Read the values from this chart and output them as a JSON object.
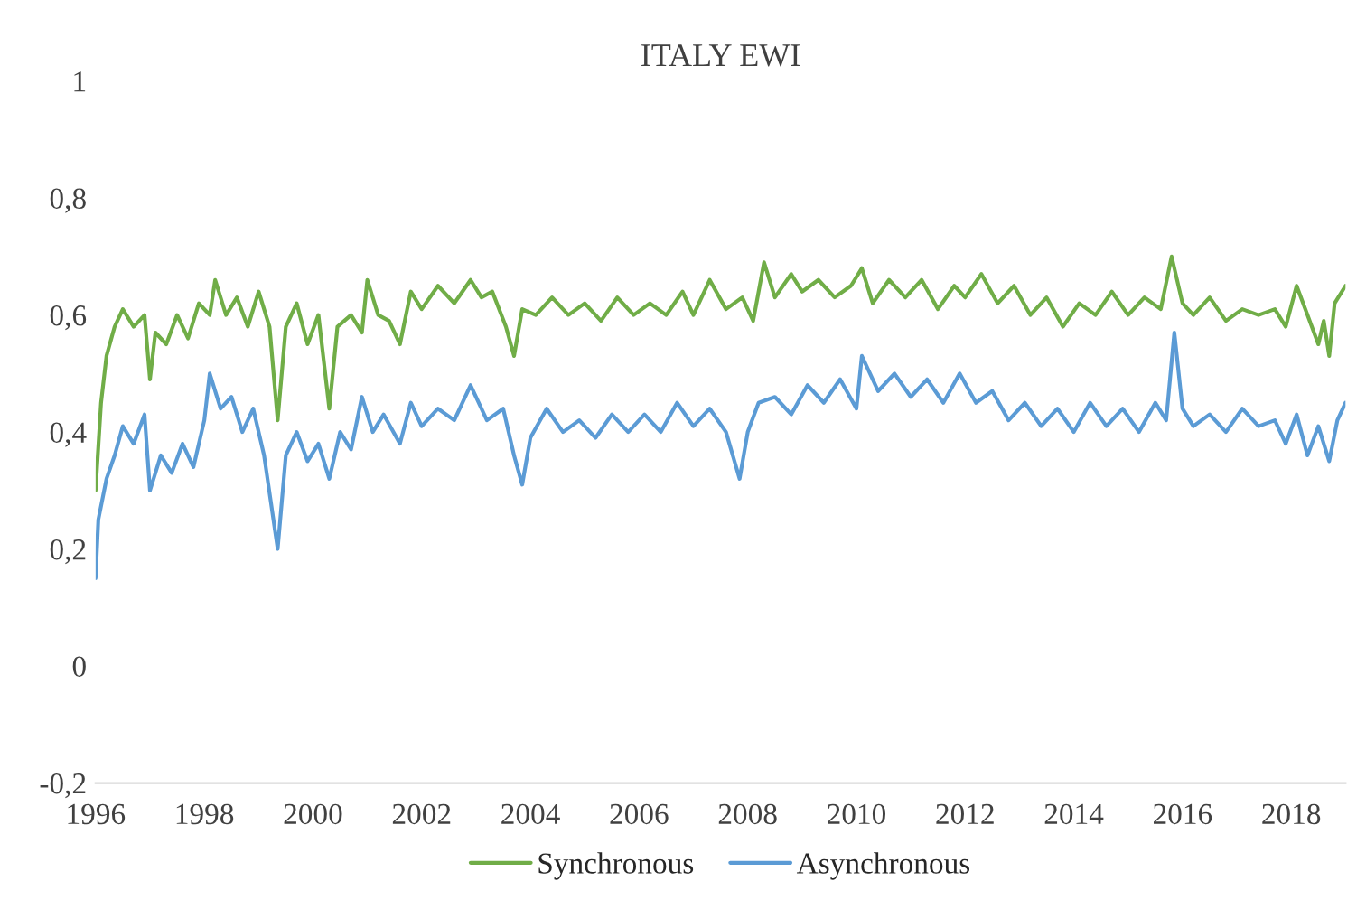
{
  "chart_data": {
    "type": "line",
    "title": "ITALY EWI",
    "xlim": [
      1996,
      2019
    ],
    "xticks": [
      1996,
      1998,
      2000,
      2002,
      2004,
      2006,
      2008,
      2010,
      2012,
      2014,
      2016,
      2018
    ],
    "ylim": [
      -0.2,
      1
    ],
    "yticks": [
      {
        "value": -0.2,
        "label": "-0,2"
      },
      0,
      {
        "value": 0.2,
        "label": "0,2"
      },
      {
        "value": 0.4,
        "label": "0,4"
      },
      {
        "value": 0.6,
        "label": "0,6"
      },
      {
        "value": 0.8,
        "label": "0,8"
      },
      1
    ],
    "grid": false,
    "legend": "bottom",
    "marker": "none",
    "line_style": "solid",
    "series": [
      {
        "name": "Synchronous",
        "color": "#70ad47",
        "x": [
          1996.0,
          1996.1,
          1996.2,
          1996.35,
          1996.5,
          1996.7,
          1996.9,
          1997.0,
          1997.1,
          1997.3,
          1997.5,
          1997.7,
          1997.9,
          1998.1,
          1998.2,
          1998.4,
          1998.6,
          1998.8,
          1999.0,
          1999.2,
          1999.35,
          1999.5,
          1999.7,
          1999.9,
          2000.1,
          2000.3,
          2000.45,
          2000.7,
          2000.9,
          2001.0,
          2001.2,
          2001.4,
          2001.6,
          2001.8,
          2002.0,
          2002.3,
          2002.6,
          2002.9,
          2003.1,
          2003.3,
          2003.55,
          2003.7,
          2003.85,
          2004.1,
          2004.4,
          2004.7,
          2005.0,
          2005.3,
          2005.6,
          2005.9,
          2006.2,
          2006.5,
          2006.8,
          2007.0,
          2007.3,
          2007.6,
          2007.9,
          2008.1,
          2008.3,
          2008.5,
          2008.8,
          2009.0,
          2009.3,
          2009.6,
          2009.9,
          2010.1,
          2010.3,
          2010.6,
          2010.9,
          2011.2,
          2011.5,
          2011.8,
          2012.0,
          2012.3,
          2012.6,
          2012.9,
          2013.2,
          2013.5,
          2013.8,
          2014.1,
          2014.4,
          2014.7,
          2015.0,
          2015.3,
          2015.6,
          2015.8,
          2016.0,
          2016.2,
          2016.5,
          2016.8,
          2017.1,
          2017.4,
          2017.7,
          2017.9,
          2018.1,
          2018.3,
          2018.5,
          2018.6,
          2018.7,
          2018.8,
          2019.0
        ],
        "values": [
          0.3,
          0.45,
          0.53,
          0.58,
          0.61,
          0.58,
          0.6,
          0.49,
          0.57,
          0.55,
          0.6,
          0.56,
          0.62,
          0.6,
          0.66,
          0.6,
          0.63,
          0.58,
          0.64,
          0.58,
          0.42,
          0.58,
          0.62,
          0.55,
          0.6,
          0.44,
          0.58,
          0.6,
          0.57,
          0.66,
          0.6,
          0.59,
          0.55,
          0.64,
          0.61,
          0.65,
          0.62,
          0.66,
          0.63,
          0.64,
          0.58,
          0.53,
          0.61,
          0.6,
          0.63,
          0.6,
          0.62,
          0.59,
          0.63,
          0.6,
          0.62,
          0.6,
          0.64,
          0.6,
          0.66,
          0.61,
          0.63,
          0.59,
          0.69,
          0.63,
          0.67,
          0.64,
          0.66,
          0.63,
          0.65,
          0.68,
          0.62,
          0.66,
          0.63,
          0.66,
          0.61,
          0.65,
          0.63,
          0.67,
          0.62,
          0.65,
          0.6,
          0.63,
          0.58,
          0.62,
          0.6,
          0.64,
          0.6,
          0.63,
          0.61,
          0.7,
          0.62,
          0.6,
          0.63,
          0.59,
          0.61,
          0.6,
          0.61,
          0.58,
          0.65,
          0.6,
          0.55,
          0.59,
          0.53,
          0.62,
          0.65
        ]
      },
      {
        "name": "Asynchronous",
        "color": "#5b9bd5",
        "x": [
          1996.0,
          1996.05,
          1996.2,
          1996.35,
          1996.5,
          1996.7,
          1996.9,
          1997.0,
          1997.2,
          1997.4,
          1997.6,
          1997.8,
          1998.0,
          1998.1,
          1998.3,
          1998.5,
          1998.7,
          1998.9,
          1999.1,
          1999.35,
          1999.5,
          1999.7,
          1999.9,
          2000.1,
          2000.3,
          2000.5,
          2000.7,
          2000.9,
          2001.1,
          2001.3,
          2001.6,
          2001.8,
          2002.0,
          2002.3,
          2002.6,
          2002.9,
          2003.2,
          2003.5,
          2003.7,
          2003.85,
          2004.0,
          2004.3,
          2004.6,
          2004.9,
          2005.2,
          2005.5,
          2005.8,
          2006.1,
          2006.4,
          2006.7,
          2007.0,
          2007.3,
          2007.6,
          2007.85,
          2008.0,
          2008.2,
          2008.5,
          2008.8,
          2009.1,
          2009.4,
          2009.7,
          2010.0,
          2010.1,
          2010.4,
          2010.7,
          2011.0,
          2011.3,
          2011.6,
          2011.9,
          2012.2,
          2012.5,
          2012.8,
          2013.1,
          2013.4,
          2013.7,
          2014.0,
          2014.3,
          2014.6,
          2014.9,
          2015.2,
          2015.5,
          2015.7,
          2015.85,
          2016.0,
          2016.2,
          2016.5,
          2016.8,
          2017.1,
          2017.4,
          2017.7,
          2017.9,
          2018.1,
          2018.3,
          2018.5,
          2018.7,
          2018.85,
          2019.0
        ],
        "values": [
          0.15,
          0.25,
          0.32,
          0.36,
          0.41,
          0.38,
          0.43,
          0.3,
          0.36,
          0.33,
          0.38,
          0.34,
          0.42,
          0.5,
          0.44,
          0.46,
          0.4,
          0.44,
          0.36,
          0.2,
          0.36,
          0.4,
          0.35,
          0.38,
          0.32,
          0.4,
          0.37,
          0.46,
          0.4,
          0.43,
          0.38,
          0.45,
          0.41,
          0.44,
          0.42,
          0.48,
          0.42,
          0.44,
          0.36,
          0.31,
          0.39,
          0.44,
          0.4,
          0.42,
          0.39,
          0.43,
          0.4,
          0.43,
          0.4,
          0.45,
          0.41,
          0.44,
          0.4,
          0.32,
          0.4,
          0.45,
          0.46,
          0.43,
          0.48,
          0.45,
          0.49,
          0.44,
          0.53,
          0.47,
          0.5,
          0.46,
          0.49,
          0.45,
          0.5,
          0.45,
          0.47,
          0.42,
          0.45,
          0.41,
          0.44,
          0.4,
          0.45,
          0.41,
          0.44,
          0.4,
          0.45,
          0.42,
          0.57,
          0.44,
          0.41,
          0.43,
          0.4,
          0.44,
          0.41,
          0.42,
          0.38,
          0.43,
          0.36,
          0.41,
          0.35,
          0.42,
          0.45
        ]
      }
    ]
  }
}
